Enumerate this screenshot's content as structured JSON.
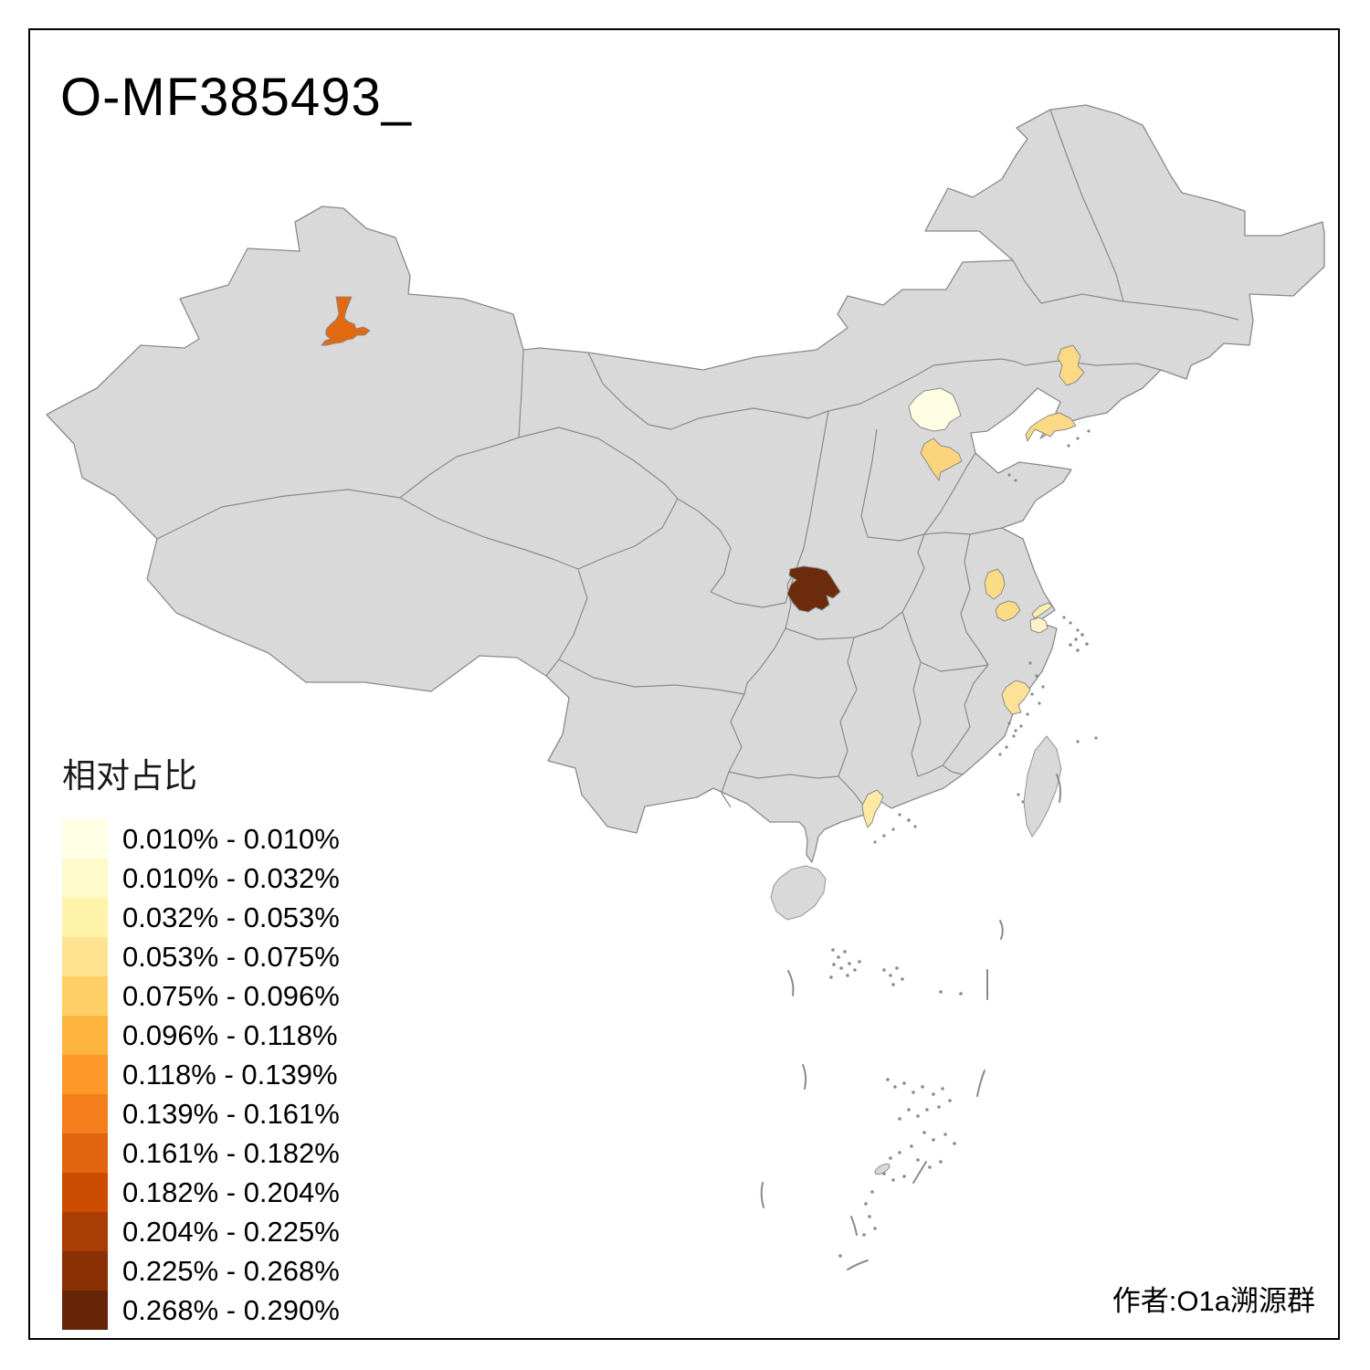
{
  "title": "O-MF385493_",
  "attribution": "作者:O1a溯源群",
  "legend": {
    "title": "相对占比",
    "items": [
      {
        "label": "0.010% - 0.010%",
        "color": "#FFFFE5"
      },
      {
        "label": "0.010% - 0.032%",
        "color": "#FFFAC9"
      },
      {
        "label": "0.032% - 0.053%",
        "color": "#FFF2A9"
      },
      {
        "label": "0.053% - 0.075%",
        "color": "#FEE391"
      },
      {
        "label": "0.075% - 0.096%",
        "color": "#FECF66"
      },
      {
        "label": "0.096% - 0.118%",
        "color": "#FEB53F"
      },
      {
        "label": "0.118% - 0.139%",
        "color": "#FE9929"
      },
      {
        "label": "0.139% - 0.161%",
        "color": "#F47E1C"
      },
      {
        "label": "0.161% - 0.182%",
        "color": "#E2640E"
      },
      {
        "label": "0.182% - 0.204%",
        "color": "#CC4C02"
      },
      {
        "label": "0.204% - 0.225%",
        "color": "#A93D03"
      },
      {
        "label": "0.225% - 0.268%",
        "color": "#8A3005"
      },
      {
        "label": "0.268% - 0.290%",
        "color": "#662506"
      }
    ]
  },
  "map": {
    "land_color": "#D9D9D9",
    "boundary_color": "#8A8A8A",
    "sea_color": "#FFFFFF",
    "regions": [
      {
        "id": "region-xinjiang-changji",
        "color": "#E2690F",
        "class_label": "0.161% - 0.182%"
      },
      {
        "id": "region-beijing",
        "color": "#FFFEE3",
        "class_label": "0.010% - 0.010%"
      },
      {
        "id": "region-liaoning-central",
        "color": "#FCD985",
        "class_label": "0.053% - 0.075%"
      },
      {
        "id": "region-liaoning-dalian",
        "color": "#FCD985",
        "class_label": "0.053% - 0.075%"
      },
      {
        "id": "region-tianjin-south",
        "color": "#FBD57D",
        "class_label": "0.075% - 0.096%"
      },
      {
        "id": "region-henan-southwest",
        "color": "#6B2B0C",
        "class_label": "0.268% - 0.290%"
      },
      {
        "id": "region-jiangsu-north",
        "color": "#FBDC86",
        "class_label": "0.053% - 0.075%"
      },
      {
        "id": "region-jiangsu-central",
        "color": "#FBDC86",
        "class_label": "0.053% - 0.075%"
      },
      {
        "id": "region-jiangsu-nantong",
        "color": "#FBEFAF",
        "class_label": "0.032% - 0.053%"
      },
      {
        "id": "region-shanghai-area",
        "color": "#FAF3C9",
        "class_label": "0.010% - 0.032%"
      },
      {
        "id": "region-zhejiang-wenzhou",
        "color": "#FCE296",
        "class_label": "0.053% - 0.075%"
      },
      {
        "id": "region-guangdong-central",
        "color": "#FCE9A3",
        "class_label": "0.032% - 0.053%"
      }
    ]
  },
  "chart_data": {
    "type": "choropleth",
    "title": "O-MF385493_",
    "legend_title": "相对占比",
    "legend_position": "bottom-left",
    "classes": [
      {
        "range": "0.010% - 0.010%",
        "color": "#FFFFE5"
      },
      {
        "range": "0.010% - 0.032%",
        "color": "#FFFAC9"
      },
      {
        "range": "0.032% - 0.053%",
        "color": "#FFF2A9"
      },
      {
        "range": "0.053% - 0.075%",
        "color": "#FEE391"
      },
      {
        "range": "0.075% - 0.096%",
        "color": "#FECF66"
      },
      {
        "range": "0.096% - 0.118%",
        "color": "#FEB53F"
      },
      {
        "range": "0.118% - 0.139%",
        "color": "#FE9929"
      },
      {
        "range": "0.139% - 0.161%",
        "color": "#F47E1C"
      },
      {
        "range": "0.161% - 0.182%",
        "color": "#E2640E"
      },
      {
        "range": "0.182% - 0.204%",
        "color": "#CC4C02"
      },
      {
        "range": "0.204% - 0.225%",
        "color": "#A93D03"
      },
      {
        "range": "0.225% - 0.268%",
        "color": "#8A3005"
      },
      {
        "range": "0.268% - 0.290%",
        "color": "#662506"
      }
    ],
    "highlighted_regions": [
      {
        "id": "region-xinjiang-changji",
        "class_label": "0.161% - 0.182%"
      },
      {
        "id": "region-beijing",
        "class_label": "0.010% - 0.010%"
      },
      {
        "id": "region-liaoning-central",
        "class_label": "0.053% - 0.075%"
      },
      {
        "id": "region-liaoning-dalian",
        "class_label": "0.053% - 0.075%"
      },
      {
        "id": "region-tianjin-south",
        "class_label": "0.075% - 0.096%"
      },
      {
        "id": "region-henan-southwest",
        "class_label": "0.268% - 0.290%"
      },
      {
        "id": "region-jiangsu-north",
        "class_label": "0.053% - 0.075%"
      },
      {
        "id": "region-jiangsu-central",
        "class_label": "0.053% - 0.075%"
      },
      {
        "id": "region-jiangsu-nantong",
        "class_label": "0.032% - 0.053%"
      },
      {
        "id": "region-shanghai-area",
        "class_label": "0.010% - 0.032%"
      },
      {
        "id": "region-zhejiang-wenzhou",
        "class_label": "0.053% - 0.075%"
      },
      {
        "id": "region-guangdong-central",
        "class_label": "0.032% - 0.053%"
      }
    ],
    "base_land_note": "all other regions unshaded gray"
  }
}
